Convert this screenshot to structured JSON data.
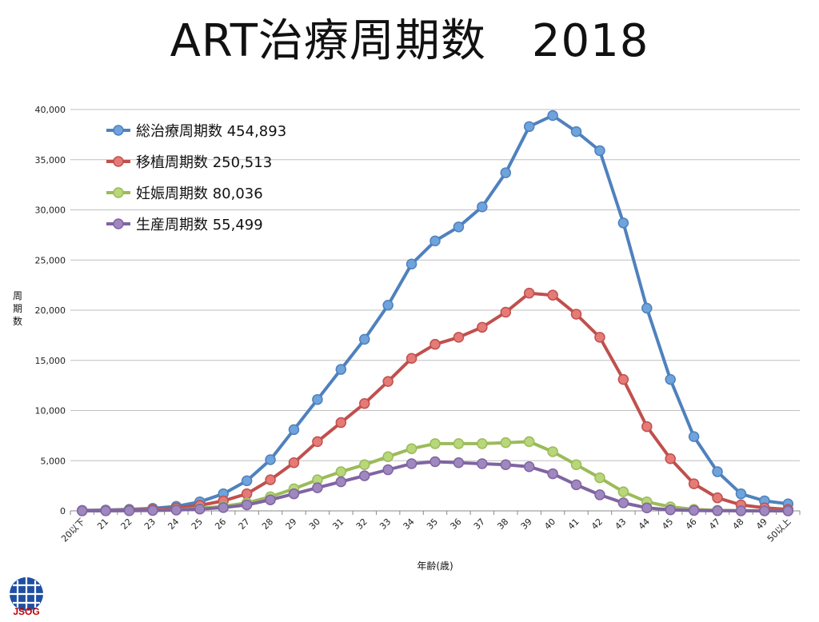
{
  "title": "ART治療周期数　2018",
  "logo_text": "JSOG",
  "chart_data": {
    "type": "line",
    "xlabel": "年齢(歳)",
    "ylabel": "周期数",
    "ylim": [
      0,
      40000
    ],
    "yticks": [
      "0",
      "5,000",
      "10,000",
      "15,000",
      "20,000",
      "25,000",
      "30,000",
      "35,000",
      "40,000"
    ],
    "grid": true,
    "legend_position": "top-left",
    "categories": [
      "20以下",
      "21",
      "22",
      "23",
      "24",
      "25",
      "26",
      "27",
      "28",
      "29",
      "30",
      "31",
      "32",
      "33",
      "34",
      "35",
      "36",
      "37",
      "38",
      "39",
      "40",
      "41",
      "42",
      "43",
      "44",
      "45",
      "46",
      "47",
      "48",
      "49",
      "50以上"
    ],
    "series": [
      {
        "name": "総治療周期数 454,893",
        "color": "#4f81bd",
        "marker": "#6fa3dc",
        "values": [
          50,
          80,
          150,
          250,
          450,
          900,
          1700,
          3000,
          5100,
          8100,
          11100,
          14100,
          17100,
          20500,
          24600,
          26900,
          28300,
          30300,
          33700,
          38300,
          39400,
          37800,
          35900,
          28700,
          20200,
          13100,
          7400,
          3900,
          1700,
          1000,
          700
        ]
      },
      {
        "name": "移植周期数 250,513",
        "color": "#c0504d",
        "marker": "#e57a77",
        "values": [
          20,
          40,
          80,
          150,
          280,
          550,
          1000,
          1700,
          3100,
          4800,
          6900,
          8800,
          10700,
          12900,
          15200,
          16600,
          17300,
          18300,
          19800,
          21700,
          21500,
          19600,
          17300,
          13100,
          8400,
          5200,
          2700,
          1300,
          600,
          300,
          150
        ]
      },
      {
        "name": "妊娠周期数 80,036",
        "color": "#9bbb59",
        "marker": "#b8d77a",
        "values": [
          5,
          10,
          20,
          50,
          100,
          250,
          450,
          800,
          1400,
          2200,
          3100,
          3900,
          4600,
          5400,
          6200,
          6700,
          6700,
          6700,
          6800,
          6900,
          5900,
          4600,
          3300,
          1900,
          900,
          400,
          150,
          50,
          20,
          10,
          5
        ]
      },
      {
        "name": "生産周期数 55,499",
        "color": "#8064a2",
        "marker": "#9f87bf",
        "values": [
          5,
          10,
          15,
          40,
          80,
          180,
          330,
          600,
          1100,
          1700,
          2300,
          2900,
          3500,
          4100,
          4700,
          4900,
          4800,
          4700,
          4600,
          4400,
          3700,
          2600,
          1600,
          800,
          300,
          100,
          40,
          15,
          5,
          3,
          2
        ]
      }
    ]
  }
}
